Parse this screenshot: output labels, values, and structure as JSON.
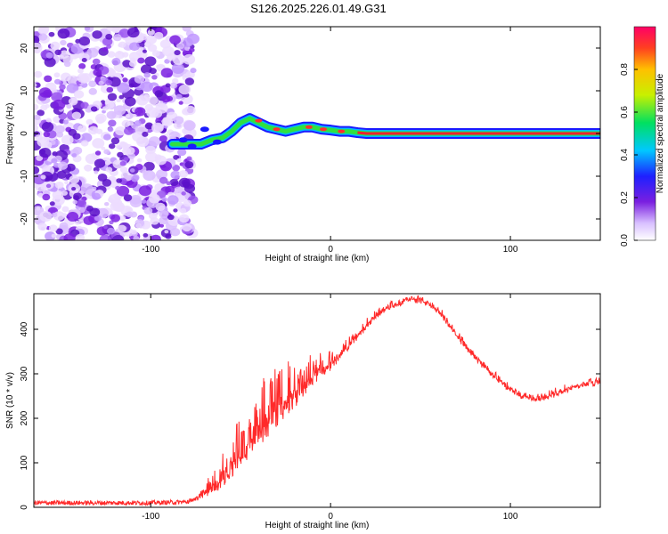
{
  "title": "S126.2025.226.01.49.G31",
  "colors": {
    "line": "#ff2a2a",
    "noise": "#7a1fe0",
    "axis": "#000000"
  },
  "colorbar": {
    "label": "Normalized spectral amplitude",
    "ticks": [
      "0.0",
      "0.2",
      "0.4",
      "0.6",
      "0.8"
    ],
    "tick_values": [
      0.0,
      0.2,
      0.4,
      0.6,
      0.8
    ],
    "range": [
      0,
      1
    ]
  },
  "chart_data": [
    {
      "type": "heatmap",
      "title": "S126.2025.226.01.49.G31",
      "xlabel": "Height of straight line (km)",
      "ylabel": "Frequency (Hz)",
      "xlim": [
        -165,
        150
      ],
      "ylim": [
        -25,
        25
      ],
      "xticks": [
        -100,
        0,
        100
      ],
      "xtick_labels": [
        "-100",
        "0",
        "100"
      ],
      "yticks": [
        -20,
        -10,
        0,
        10,
        20
      ],
      "ytick_labels": [
        "-20",
        "-10",
        "0",
        "10",
        "20"
      ],
      "noise_region_x": [
        -165,
        -80
      ],
      "ridge": {
        "x": [
          -88,
          -80,
          -72,
          -66,
          -60,
          -55,
          -50,
          -45,
          -40,
          -35,
          -30,
          -25,
          -20,
          -15,
          -10,
          -5,
          0,
          5,
          10,
          15,
          20,
          150
        ],
        "y": [
          -2.5,
          -2.5,
          -2.5,
          -1.5,
          -1.0,
          0.5,
          2.5,
          3.5,
          2.5,
          1.5,
          1.0,
          0.5,
          1.0,
          1.5,
          1.5,
          1.0,
          0.8,
          0.5,
          0.5,
          0.2,
          0.0,
          0.0
        ]
      }
    },
    {
      "type": "line",
      "xlabel": "Height of straight line (km)",
      "ylabel": "SNR (10 * v/v)",
      "xlim": [
        -165,
        150
      ],
      "ylim": [
        0,
        480
      ],
      "xticks": [
        -100,
        0,
        100
      ],
      "xtick_labels": [
        "-100",
        "0",
        "100"
      ],
      "yticks": [
        0,
        100,
        200,
        300,
        400
      ],
      "ytick_labels": [
        "0",
        "100",
        "200",
        "300",
        "400"
      ],
      "series": [
        {
          "name": "SNR",
          "x": [
            -165,
            -140,
            -120,
            -100,
            -80,
            -75,
            -70,
            -65,
            -60,
            -55,
            -50,
            -45,
            -40,
            -35,
            -30,
            -25,
            -20,
            -15,
            -10,
            -5,
            0,
            5,
            10,
            15,
            20,
            25,
            30,
            35,
            40,
            45,
            50,
            55,
            60,
            65,
            70,
            75,
            80,
            85,
            90,
            95,
            100,
            105,
            110,
            115,
            120,
            125,
            130,
            135,
            140,
            145,
            150
          ],
          "values": [
            10,
            10,
            10,
            10,
            12,
            18,
            30,
            45,
            65,
            90,
            115,
            140,
            165,
            190,
            210,
            230,
            250,
            268,
            288,
            305,
            320,
            340,
            362,
            385,
            408,
            428,
            445,
            455,
            462,
            466,
            465,
            455,
            440,
            415,
            388,
            360,
            338,
            318,
            298,
            280,
            265,
            252,
            245,
            244,
            248,
            255,
            262,
            268,
            274,
            278,
            283
          ],
          "spike_amplitude": [
            0,
            0,
            0,
            0,
            0,
            5,
            20,
            35,
            60,
            90,
            90,
            70,
            110,
            120,
            110,
            90,
            80,
            70,
            50,
            40,
            30,
            22,
            18,
            15,
            12,
            12,
            10,
            10,
            10,
            10,
            10,
            10,
            10,
            10,
            10,
            10,
            10,
            10,
            10,
            10,
            10,
            10,
            10,
            10,
            10,
            10,
            10,
            10,
            10,
            10,
            10
          ]
        }
      ]
    }
  ]
}
